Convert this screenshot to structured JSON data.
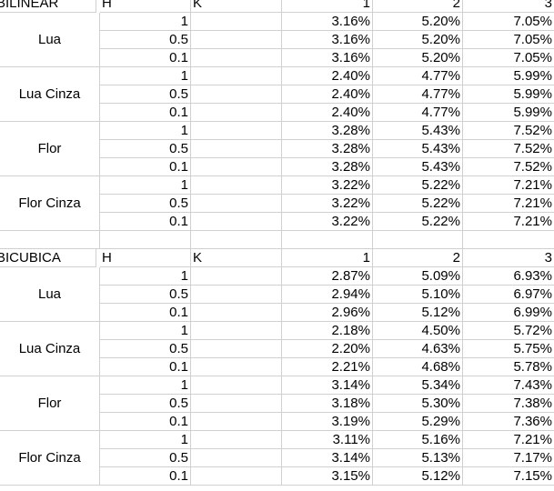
{
  "sections": [
    {
      "title": "BILINEAR",
      "header": [
        "H",
        "K",
        "1",
        "2",
        "3"
      ],
      "groups": [
        {
          "name": "Lua",
          "rows": [
            {
              "k": "1",
              "v": [
                "3.16%",
                "5.20%",
                "7.05%"
              ]
            },
            {
              "k": "0.5",
              "v": [
                "3.16%",
                "5.20%",
                "7.05%"
              ]
            },
            {
              "k": "0.1",
              "v": [
                "3.16%",
                "5.20%",
                "7.05%"
              ]
            }
          ]
        },
        {
          "name": "Lua Cinza",
          "rows": [
            {
              "k": "1",
              "v": [
                "2.40%",
                "4.77%",
                "5.99%"
              ]
            },
            {
              "k": "0.5",
              "v": [
                "2.40%",
                "4.77%",
                "5.99%"
              ]
            },
            {
              "k": "0.1",
              "v": [
                "2.40%",
                "4.77%",
                "5.99%"
              ]
            }
          ]
        },
        {
          "name": "Flor",
          "rows": [
            {
              "k": "1",
              "v": [
                "3.28%",
                "5.43%",
                "7.52%"
              ]
            },
            {
              "k": "0.5",
              "v": [
                "3.28%",
                "5.43%",
                "7.52%"
              ]
            },
            {
              "k": "0.1",
              "v": [
                "3.28%",
                "5.43%",
                "7.52%"
              ]
            }
          ]
        },
        {
          "name": "Flor Cinza",
          "rows": [
            {
              "k": "1",
              "v": [
                "3.22%",
                "5.22%",
                "7.21%"
              ]
            },
            {
              "k": "0.5",
              "v": [
                "3.22%",
                "5.22%",
                "7.21%"
              ]
            },
            {
              "k": "0.1",
              "v": [
                "3.22%",
                "5.22%",
                "7.21%"
              ]
            }
          ]
        }
      ]
    },
    {
      "title": "BICUBICA",
      "header": [
        "H",
        "K",
        "1",
        "2",
        "3"
      ],
      "groups": [
        {
          "name": "Lua",
          "rows": [
            {
              "k": "1",
              "v": [
                "2.87%",
                "5.09%",
                "6.93%"
              ]
            },
            {
              "k": "0.5",
              "v": [
                "2.94%",
                "5.10%",
                "6.97%"
              ]
            },
            {
              "k": "0.1",
              "v": [
                "2.96%",
                "5.12%",
                "6.99%"
              ]
            }
          ]
        },
        {
          "name": "Lua Cinza",
          "rows": [
            {
              "k": "1",
              "v": [
                "2.18%",
                "4.50%",
                "5.72%"
              ]
            },
            {
              "k": "0.5",
              "v": [
                "2.20%",
                "4.63%",
                "5.75%"
              ]
            },
            {
              "k": "0.1",
              "v": [
                "2.21%",
                "4.68%",
                "5.78%"
              ]
            }
          ]
        },
        {
          "name": "Flor",
          "rows": [
            {
              "k": "1",
              "v": [
                "3.14%",
                "5.34%",
                "7.43%"
              ]
            },
            {
              "k": "0.5",
              "v": [
                "3.18%",
                "5.30%",
                "7.38%"
              ]
            },
            {
              "k": "0.1",
              "v": [
                "3.19%",
                "5.29%",
                "7.36%"
              ]
            }
          ]
        },
        {
          "name": "Flor Cinza",
          "rows": [
            {
              "k": "1",
              "v": [
                "3.11%",
                "5.16%",
                "7.21%"
              ]
            },
            {
              "k": "0.5",
              "v": [
                "3.14%",
                "5.13%",
                "7.17%"
              ]
            },
            {
              "k": "0.1",
              "v": [
                "3.15%",
                "5.12%",
                "7.15%"
              ]
            }
          ]
        }
      ]
    }
  ]
}
